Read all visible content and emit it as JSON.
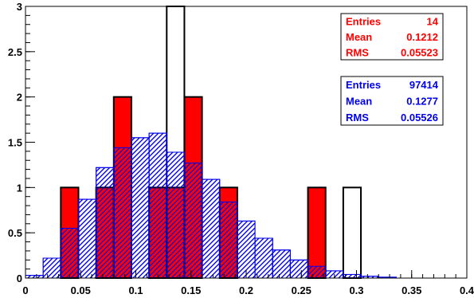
{
  "chart_data": {
    "type": "bar",
    "title": "",
    "xlabel": "",
    "ylabel": "",
    "xlim": [
      0,
      0.4
    ],
    "ylim": [
      0,
      3.0
    ],
    "bin_width": 0.016,
    "x_ticks": [
      "0",
      "0.05",
      "0.1",
      "0.15",
      "0.2",
      "0.25",
      "0.3",
      "0.35",
      "0.4"
    ],
    "x_tick_values": [
      0,
      0.05,
      0.1,
      0.15,
      0.2,
      0.25,
      0.3,
      0.35,
      0.4
    ],
    "y_ticks": [
      "0",
      "0.5",
      "1",
      "1.5",
      "2",
      "2.5",
      "3"
    ],
    "y_tick_values": [
      0,
      0.5,
      1.0,
      1.5,
      2.0,
      2.5,
      3.0
    ],
    "series": [
      {
        "color": "#0000ee",
        "style": "hatched",
        "bin_low_edges": [
          0.0,
          0.016,
          0.032,
          0.048,
          0.064,
          0.08,
          0.096,
          0.112,
          0.128,
          0.144,
          0.16,
          0.176,
          0.192,
          0.208,
          0.224,
          0.24,
          0.256,
          0.272,
          0.288,
          0.304,
          0.32
        ],
        "values": [
          0.03,
          0.22,
          0.55,
          0.87,
          1.22,
          1.44,
          1.55,
          1.6,
          1.39,
          1.27,
          1.09,
          0.84,
          0.63,
          0.44,
          0.31,
          0.2,
          0.13,
          0.08,
          0.04,
          0.02,
          0.01
        ]
      },
      {
        "color": "#ff0000",
        "style": "filled",
        "bin_low_edges": [
          0.032,
          0.064,
          0.08,
          0.112,
          0.128,
          0.144,
          0.176,
          0.256
        ],
        "values": [
          1,
          1,
          2,
          1,
          1,
          2,
          1,
          1
        ]
      },
      {
        "color": "#000000",
        "style": "outline",
        "bin_low_edges": [
          0.128,
          0.288
        ],
        "values": [
          3,
          1
        ]
      }
    ],
    "stats_boxes": [
      {
        "color": "#ff0000",
        "rows": [
          {
            "label": "Entries",
            "value": "14"
          },
          {
            "label": "Mean",
            "value": "0.1212"
          },
          {
            "label": "RMS",
            "value": "0.05523"
          }
        ]
      },
      {
        "color": "#0000ee",
        "rows": [
          {
            "label": "Entries",
            "value": "97414"
          },
          {
            "label": "Mean",
            "value": "0.1277"
          },
          {
            "label": "RMS",
            "value": "0.05526"
          }
        ]
      }
    ]
  }
}
